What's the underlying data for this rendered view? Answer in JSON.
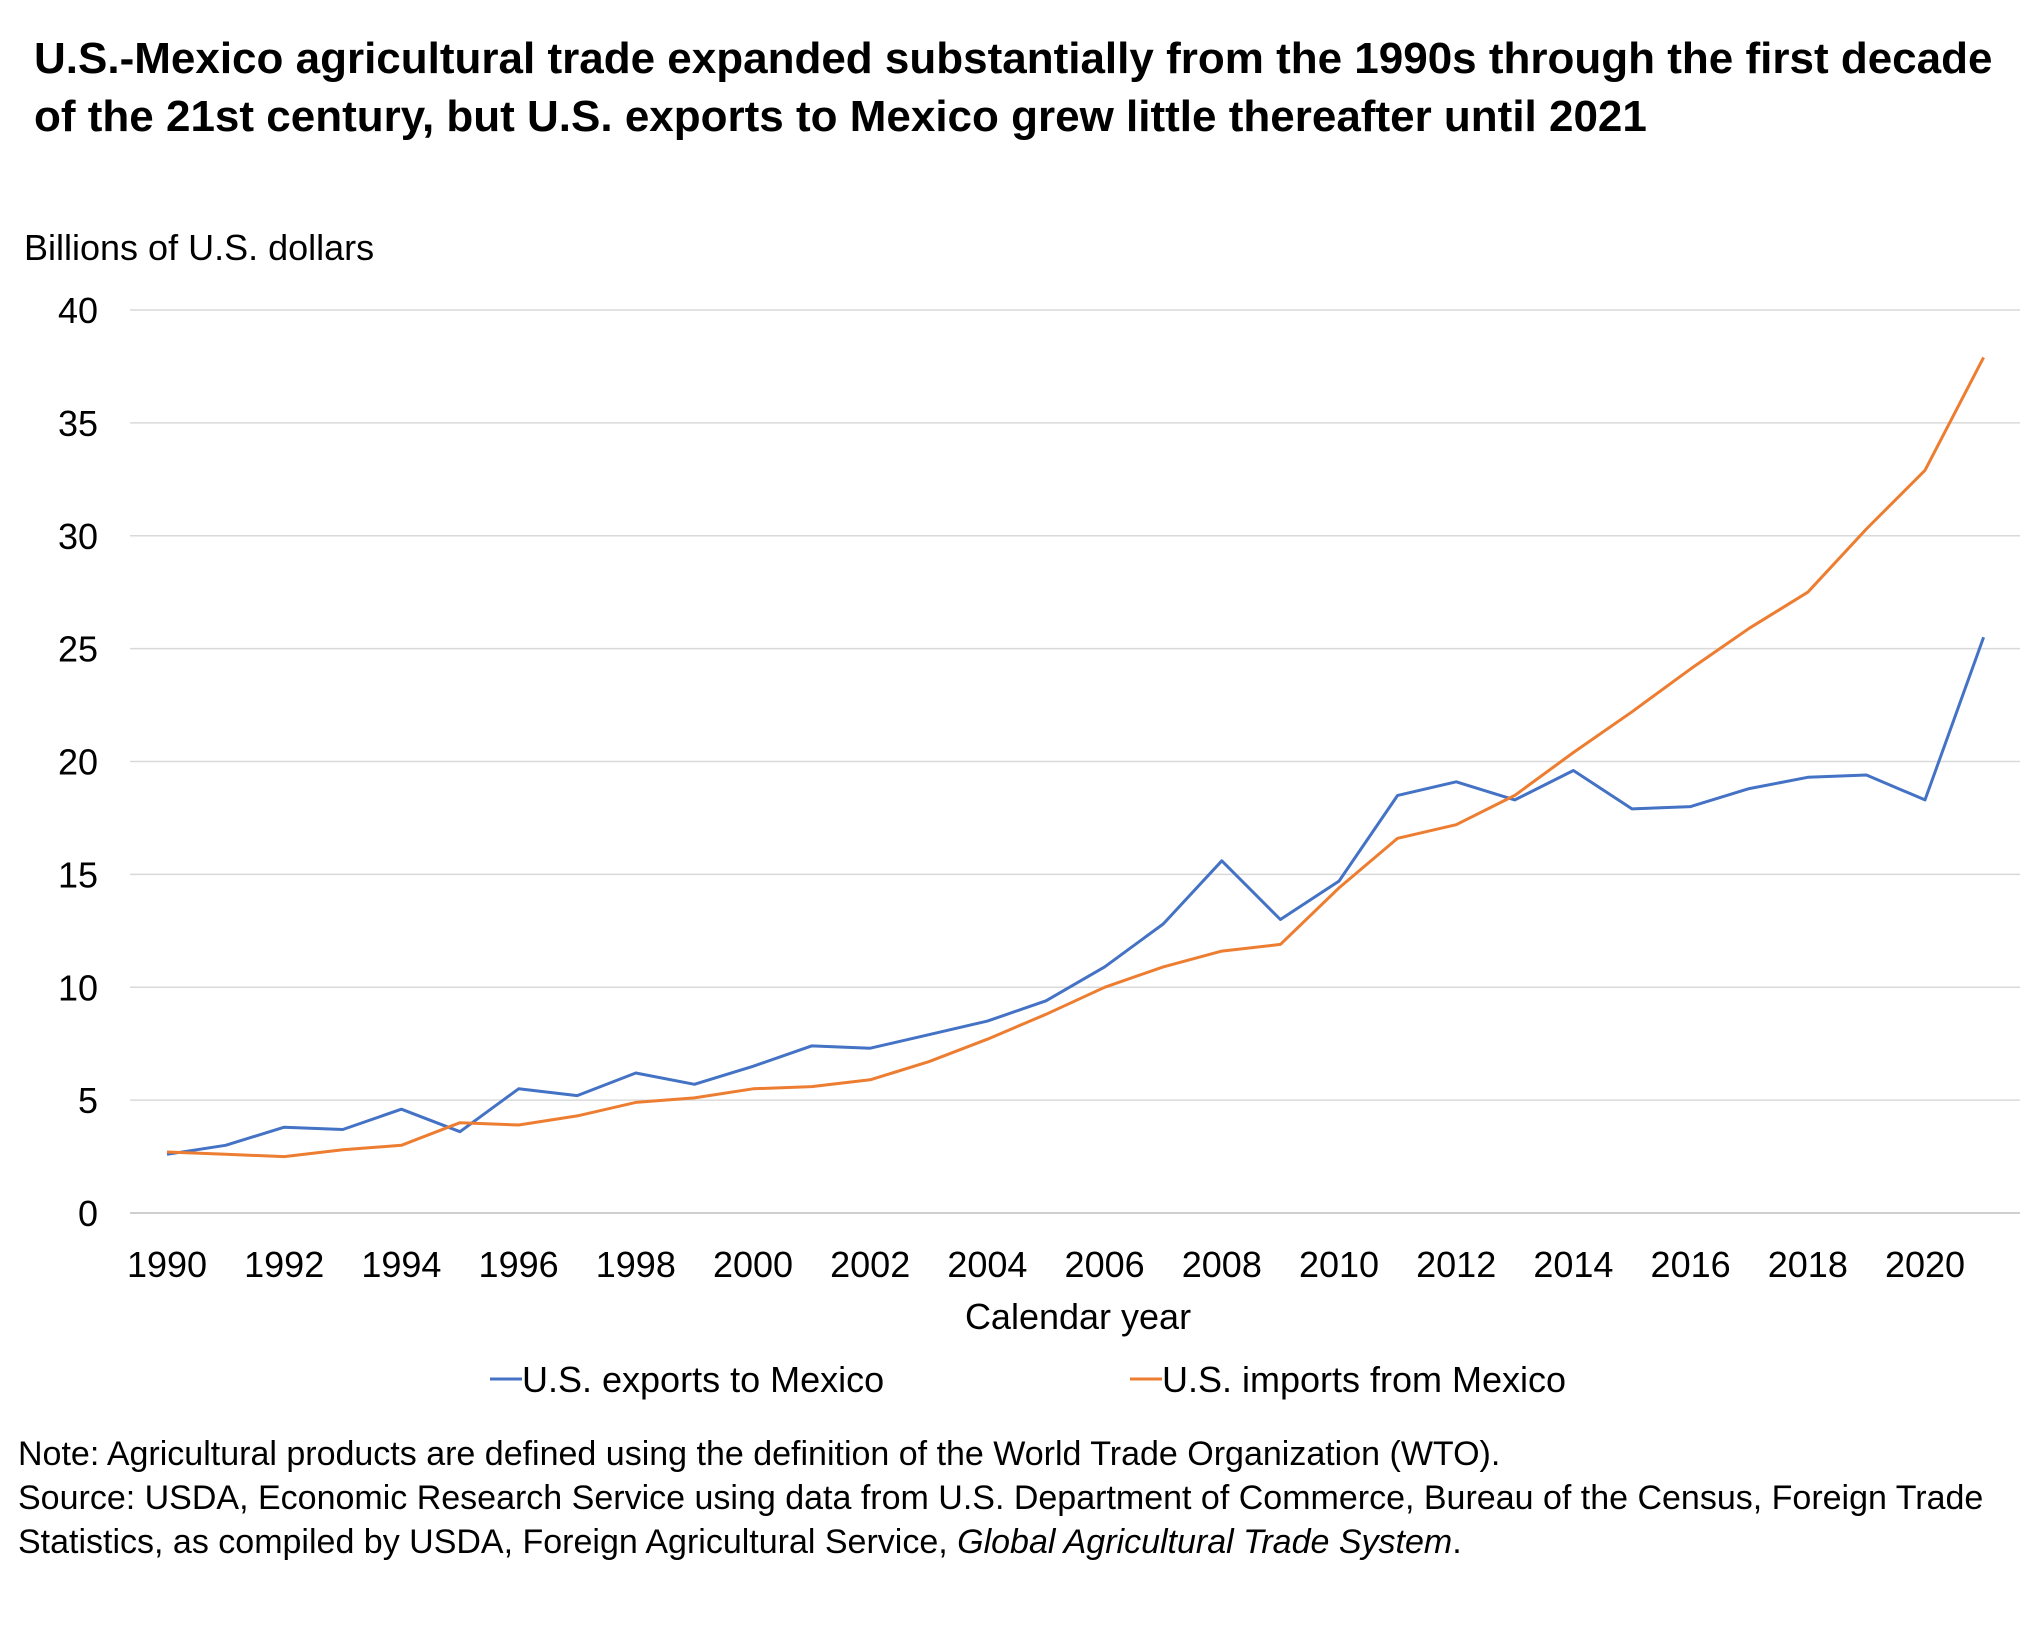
{
  "chart_data": {
    "type": "line",
    "title": "U.S.-Mexico agricultural trade expanded substantially from the 1990s through the first decade of the 21st century, but U.S. exports to Mexico grew little thereafter until 2021",
    "ylabel": "Billions of U.S. dollars",
    "xlabel": "Calendar year",
    "ylim": [
      0,
      40
    ],
    "yticks": [
      0,
      5,
      10,
      15,
      20,
      25,
      30,
      35,
      40
    ],
    "xlim": [
      1990,
      2021
    ],
    "xticks": [
      1990,
      1992,
      1994,
      1996,
      1998,
      2000,
      2002,
      2004,
      2006,
      2008,
      2010,
      2012,
      2014,
      2016,
      2018,
      2020
    ],
    "grid": true,
    "legend_position": "bottom",
    "x": [
      1990,
      1991,
      1992,
      1993,
      1994,
      1995,
      1996,
      1997,
      1998,
      1999,
      2000,
      2001,
      2002,
      2003,
      2004,
      2005,
      2006,
      2007,
      2008,
      2009,
      2010,
      2011,
      2012,
      2013,
      2014,
      2015,
      2016,
      2017,
      2018,
      2019,
      2020,
      2021
    ],
    "series": [
      {
        "name": "U.S. exports to Mexico",
        "color": "#4472C4",
        "values": [
          2.6,
          3.0,
          3.8,
          3.7,
          4.6,
          3.6,
          5.5,
          5.2,
          6.2,
          5.7,
          6.5,
          7.4,
          7.3,
          7.9,
          8.5,
          9.4,
          10.9,
          12.8,
          15.6,
          13.0,
          14.7,
          18.5,
          19.1,
          18.3,
          19.6,
          17.9,
          18.0,
          18.8,
          19.3,
          19.4,
          18.3,
          25.5
        ]
      },
      {
        "name": "U.S. imports from Mexico",
        "color": "#ED7D31",
        "values": [
          2.7,
          2.6,
          2.5,
          2.8,
          3.0,
          4.0,
          3.9,
          4.3,
          4.9,
          5.1,
          5.5,
          5.6,
          5.9,
          6.7,
          7.7,
          8.8,
          10.0,
          10.9,
          11.6,
          11.9,
          14.4,
          16.6,
          17.2,
          18.5,
          20.4,
          22.2,
          24.1,
          25.9,
          27.5,
          30.3,
          32.9,
          37.9
        ]
      }
    ]
  },
  "notes": {
    "note": "Note: Agricultural products are defined using the definition of the World Trade Organization (WTO).",
    "source_prefix": "Source: USDA, Economic Research Service using data from U.S. Department of Commerce, Bureau of the Census, Foreign Trade Statistics, as compiled by USDA, Foreign Agricultural Service, ",
    "source_italic": "Global Agricultural Trade System",
    "source_suffix": "."
  }
}
